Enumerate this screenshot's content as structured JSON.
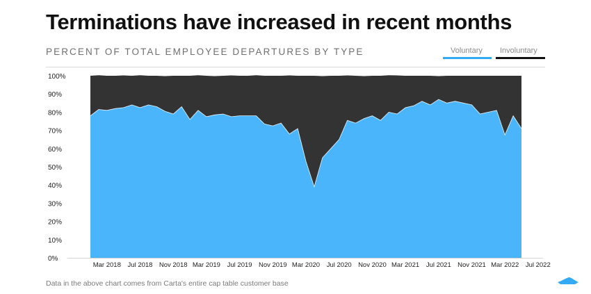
{
  "header": {
    "title": "Terminations have increased in recent months",
    "subtitle": "PERCENT OF TOTAL EMPLOYEE DEPARTURES BY TYPE"
  },
  "legend": [
    {
      "label": "Voluntary",
      "color": "#33aaf5"
    },
    {
      "label": "Involuntary",
      "color": "#111111"
    }
  ],
  "footnote": "Data in the above chart comes from Carta's entire cap table customer base",
  "logo": {
    "name": "carta-logo-icon",
    "color": "#33aaf5"
  },
  "chart_data": {
    "type": "area",
    "stacked": true,
    "x": [
      "2018-01",
      "2018-02",
      "2018-03",
      "2018-04",
      "2018-05",
      "2018-06",
      "2018-07",
      "2018-08",
      "2018-09",
      "2018-10",
      "2018-11",
      "2018-12",
      "2019-01",
      "2019-02",
      "2019-03",
      "2019-04",
      "2019-05",
      "2019-06",
      "2019-07",
      "2019-08",
      "2019-09",
      "2019-10",
      "2019-11",
      "2019-12",
      "2020-01",
      "2020-02",
      "2020-03",
      "2020-04",
      "2020-05",
      "2020-06",
      "2020-07",
      "2020-08",
      "2020-09",
      "2020-10",
      "2020-11",
      "2020-12",
      "2021-01",
      "2021-02",
      "2021-03",
      "2021-04",
      "2021-05",
      "2021-06",
      "2021-07",
      "2021-08",
      "2021-09",
      "2021-10",
      "2021-11",
      "2021-12",
      "2022-01",
      "2022-02",
      "2022-03",
      "2022-04",
      "2022-05"
    ],
    "series": [
      {
        "name": "Voluntary",
        "color": "#4ab5fb",
        "values": [
          78,
          81.5,
          81,
          82,
          82.5,
          84,
          82.5,
          84,
          83,
          80.5,
          79,
          83,
          76,
          81,
          77.5,
          78.5,
          79,
          77.5,
          78,
          78,
          78,
          73.5,
          72.5,
          74,
          68,
          71,
          53,
          39,
          55,
          60,
          65,
          75.5,
          74,
          76.5,
          78,
          75.5,
          80,
          79,
          82.5,
          83.5,
          86,
          84,
          87,
          85,
          86,
          85,
          84,
          79,
          80,
          81,
          67.5,
          78,
          71
        ]
      },
      {
        "name": "Involuntary",
        "color": "#333333",
        "values": [
          22,
          18.5,
          19,
          18,
          17.5,
          16,
          17.5,
          16,
          17,
          19.5,
          21,
          17,
          24,
          19,
          22.5,
          21.5,
          21,
          22.5,
          22,
          22,
          22,
          26.5,
          27.5,
          26,
          32,
          29,
          47,
          61,
          45,
          40,
          35,
          24.5,
          26,
          23.5,
          22,
          24.5,
          20,
          21,
          17.5,
          16.5,
          14,
          16,
          13,
          15,
          14,
          15,
          16,
          21,
          20,
          19,
          32.5,
          22,
          29
        ]
      }
    ],
    "total_edge": [
      100,
      100.3,
      100,
      100,
      100.2,
      100,
      100.3,
      100,
      100,
      99.8,
      100,
      100,
      100,
      100.3,
      100,
      99.8,
      100,
      100.2,
      100,
      100,
      100.3,
      100,
      100,
      100,
      100.2,
      100,
      100,
      100,
      99.8,
      100,
      100,
      100.2,
      100,
      99.8,
      100,
      100,
      100.3,
      100.2,
      100,
      100,
      100,
      100,
      99.8,
      100,
      100,
      100,
      100,
      100,
      100,
      100,
      100,
      100,
      100
    ],
    "x_tick_labels": [
      {
        "x": "2018-03",
        "label": "Mar 2018"
      },
      {
        "x": "2018-07",
        "label": "Jul 2018"
      },
      {
        "x": "2018-11",
        "label": "Nov 2018"
      },
      {
        "x": "2019-03",
        "label": "Mar 2019"
      },
      {
        "x": "2019-07",
        "label": "Jul 2019"
      },
      {
        "x": "2019-11",
        "label": "Nov 2019"
      },
      {
        "x": "2020-03",
        "label": "Mar 2020"
      },
      {
        "x": "2020-07",
        "label": "Jul 2020"
      },
      {
        "x": "2020-11",
        "label": "Nov 2020"
      },
      {
        "x": "2021-03",
        "label": "Mar 2021"
      },
      {
        "x": "2021-07",
        "label": "Jul 2021"
      },
      {
        "x": "2021-11",
        "label": "Nov 2021"
      },
      {
        "x": "2022-03",
        "label": "Mar 2022"
      },
      {
        "x": "2022-07",
        "label": "Jul 2022"
      }
    ],
    "y_ticks": [
      0,
      10,
      20,
      30,
      40,
      50,
      60,
      70,
      80,
      90,
      100
    ],
    "y_tick_labels": [
      "0%",
      "10%",
      "20%",
      "30%",
      "40%",
      "50%",
      "60%",
      "70%",
      "80%",
      "90%",
      "100%"
    ],
    "ylim": [
      0,
      100
    ],
    "grid": false,
    "legend_position": "top-right"
  }
}
